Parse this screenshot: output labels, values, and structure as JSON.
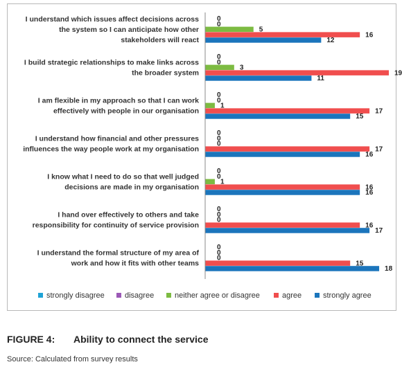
{
  "figure": {
    "label": "FIGURE 4:",
    "title": "Ability to connect the service",
    "source": "Source: Calculated from survey results"
  },
  "chart_data": {
    "type": "bar",
    "orientation": "horizontal",
    "categories": [
      [
        "I understand which issues affect decisions across",
        "the system so I can anticipate how other",
        "stakeholders will react"
      ],
      [
        "I build strategic relationships to make links across",
        "the broader system"
      ],
      [
        "I am  flexible in my approach so that I can work",
        "effectively with people in our organisation"
      ],
      [
        "I  understand how financial and other pressures",
        "influences the way people work at my organisation"
      ],
      [
        "I know what I need to do so that well judged",
        "decisions are made in my organisation"
      ],
      [
        "I hand over effectively to others and take",
        "responsibility for continuity of service provision"
      ],
      [
        "I understand the formal structure of my area of",
        "work and how it fits with other teams"
      ]
    ],
    "series": [
      {
        "name": "strongly disagree",
        "color": "#1fa3d6",
        "values": [
          0,
          0,
          0,
          0,
          0,
          0,
          0
        ]
      },
      {
        "name": "disagree",
        "color": "#9b59b6",
        "values": [
          0,
          0,
          0,
          0,
          0,
          0,
          0
        ]
      },
      {
        "name": "neither agree or disagree",
        "color": "#7dbb42",
        "values": [
          5,
          3,
          1,
          0,
          1,
          0,
          0
        ]
      },
      {
        "name": "agree",
        "color": "#f04e4e",
        "values": [
          16,
          19,
          17,
          17,
          16,
          16,
          15
        ]
      },
      {
        "name": "strongly agree",
        "color": "#1b75bc",
        "values": [
          12,
          11,
          15,
          16,
          16,
          17,
          18
        ]
      }
    ],
    "xlim": [
      0,
      19
    ],
    "legend_position": "bottom",
    "grid": false
  }
}
